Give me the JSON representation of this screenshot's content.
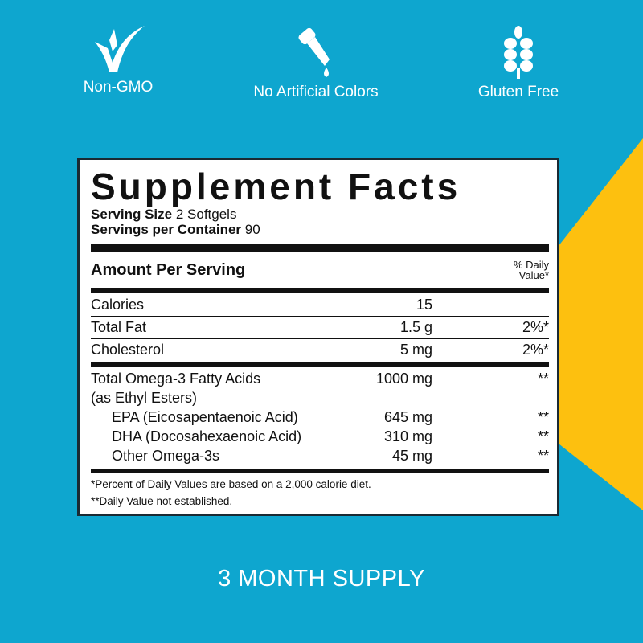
{
  "colors": {
    "background": "#0ea6cf",
    "accent": "#fdc00f",
    "panel": "#ffffff",
    "text": "#111111"
  },
  "badges": [
    {
      "icon": "check-leaf-icon",
      "label": "Non-GMO"
    },
    {
      "icon": "dropper-icon",
      "label": "No Artificial Colors"
    },
    {
      "icon": "wheat-icon",
      "label": "Gluten Free"
    }
  ],
  "facts": {
    "title": "Supplement Facts",
    "serving_size_label": "Serving Size",
    "serving_size_value": "2 Softgels",
    "servings_label": "Servings per Container",
    "servings_value": "90",
    "amount_header": "Amount Per Serving",
    "dv_header_1": "% Daily",
    "dv_header_2": "Value*",
    "rows": [
      {
        "name": "Calories",
        "amount": "15",
        "dv": ""
      },
      {
        "name": "Total Fat",
        "amount": "1.5 g",
        "dv": "2%*"
      },
      {
        "name": "Cholesterol",
        "amount": "5 mg",
        "dv": "2%*"
      }
    ],
    "omega": {
      "name": "Total Omega-3 Fatty Acids",
      "note": "(as Ethyl Esters)",
      "amount": "1000 mg",
      "dv": "**"
    },
    "sub_rows": [
      {
        "name": "EPA (Eicosapentaenoic Acid)",
        "amount": "645 mg",
        "dv": "**"
      },
      {
        "name": "DHA (Docosahexaenoic Acid)",
        "amount": "310 mg",
        "dv": "**"
      },
      {
        "name": "Other Omega-3s",
        "amount": "45 mg",
        "dv": "**"
      }
    ],
    "footnote_1": "*Percent of Daily Values are based on a 2,000 calorie diet.",
    "footnote_2": "**Daily Value not established."
  },
  "supply": "3 MONTH SUPPLY"
}
